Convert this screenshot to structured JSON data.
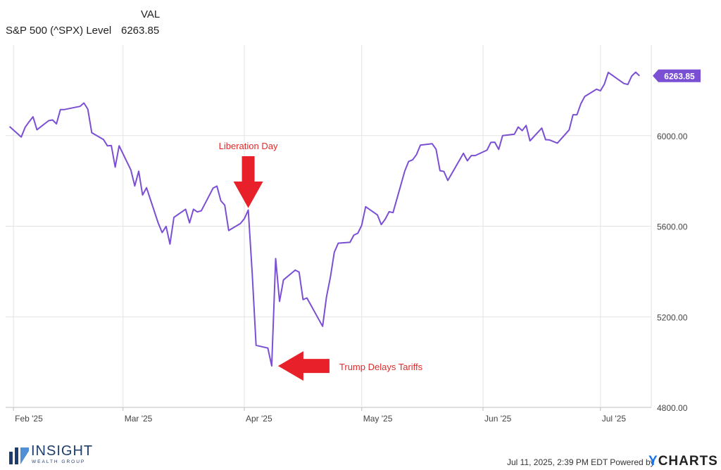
{
  "legend": {
    "column_header": "VAL",
    "series_label": "S&P 500 (^SPX) Level",
    "series_value": "6263.85"
  },
  "chart_data": {
    "type": "line",
    "color": "#7b4fd3",
    "ylim": [
      4800,
      6400
    ],
    "y_ticks": [
      "4800.00",
      "5200.00",
      "5600.00",
      "6000.00"
    ],
    "x_ticks": [
      "Feb '25",
      "Mar '25",
      "Apr '25",
      "May '25",
      "Jun '25",
      "Jul '25"
    ],
    "last_value_label": "6263.85",
    "grid": true,
    "series": [
      {
        "values": [
          [
            "2025-01-31",
            6040
          ],
          [
            "2025-02-03",
            5994
          ],
          [
            "2025-02-04",
            6037
          ],
          [
            "2025-02-05",
            6061
          ],
          [
            "2025-02-06",
            6083
          ],
          [
            "2025-02-07",
            6026
          ],
          [
            "2025-02-10",
            6066
          ],
          [
            "2025-02-11",
            6069
          ],
          [
            "2025-02-12",
            6052
          ],
          [
            "2025-02-13",
            6115
          ],
          [
            "2025-02-14",
            6115
          ],
          [
            "2025-02-18",
            6129
          ],
          [
            "2025-02-19",
            6144
          ],
          [
            "2025-02-20",
            6117
          ],
          [
            "2025-02-21",
            6013
          ],
          [
            "2025-02-24",
            5983
          ],
          [
            "2025-02-25",
            5955
          ],
          [
            "2025-02-26",
            5956
          ],
          [
            "2025-02-27",
            5861
          ],
          [
            "2025-02-28",
            5955
          ],
          [
            "2025-03-03",
            5849
          ],
          [
            "2025-03-04",
            5778
          ],
          [
            "2025-03-05",
            5843
          ],
          [
            "2025-03-06",
            5738
          ],
          [
            "2025-03-07",
            5770
          ],
          [
            "2025-03-10",
            5614
          ],
          [
            "2025-03-11",
            5572
          ],
          [
            "2025-03-12",
            5599
          ],
          [
            "2025-03-13",
            5521
          ],
          [
            "2025-03-14",
            5639
          ],
          [
            "2025-03-17",
            5675
          ],
          [
            "2025-03-18",
            5615
          ],
          [
            "2025-03-19",
            5675
          ],
          [
            "2025-03-20",
            5663
          ],
          [
            "2025-03-21",
            5668
          ],
          [
            "2025-03-24",
            5768
          ],
          [
            "2025-03-25",
            5777
          ],
          [
            "2025-03-26",
            5712
          ],
          [
            "2025-03-27",
            5693
          ],
          [
            "2025-03-28",
            5581
          ],
          [
            "2025-03-31",
            5612
          ],
          [
            "2025-04-01",
            5633
          ],
          [
            "2025-04-02",
            5671
          ],
          [
            "2025-04-03",
            5397
          ],
          [
            "2025-04-04",
            5074
          ],
          [
            "2025-04-07",
            5062
          ],
          [
            "2025-04-08",
            4983
          ],
          [
            "2025-04-09",
            5457
          ],
          [
            "2025-04-10",
            5268
          ],
          [
            "2025-04-11",
            5363
          ],
          [
            "2025-04-14",
            5406
          ],
          [
            "2025-04-15",
            5397
          ],
          [
            "2025-04-16",
            5276
          ],
          [
            "2025-04-17",
            5283
          ],
          [
            "2025-04-21",
            5158
          ],
          [
            "2025-04-22",
            5288
          ],
          [
            "2025-04-23",
            5376
          ],
          [
            "2025-04-24",
            5485
          ],
          [
            "2025-04-25",
            5525
          ],
          [
            "2025-04-28",
            5529
          ],
          [
            "2025-04-29",
            5561
          ],
          [
            "2025-04-30",
            5569
          ],
          [
            "2025-05-01",
            5604
          ],
          [
            "2025-05-02",
            5686
          ],
          [
            "2025-05-05",
            5650
          ],
          [
            "2025-05-06",
            5607
          ],
          [
            "2025-05-07",
            5631
          ],
          [
            "2025-05-08",
            5664
          ],
          [
            "2025-05-09",
            5660
          ],
          [
            "2025-05-12",
            5844
          ],
          [
            "2025-05-13",
            5886
          ],
          [
            "2025-05-14",
            5893
          ],
          [
            "2025-05-15",
            5916
          ],
          [
            "2025-05-16",
            5958
          ],
          [
            "2025-05-19",
            5964
          ],
          [
            "2025-05-20",
            5940
          ],
          [
            "2025-05-21",
            5845
          ],
          [
            "2025-05-22",
            5842
          ],
          [
            "2025-05-23",
            5802
          ],
          [
            "2025-05-27",
            5922
          ],
          [
            "2025-05-28",
            5889
          ],
          [
            "2025-05-29",
            5912
          ],
          [
            "2025-05-30",
            5912
          ],
          [
            "2025-06-02",
            5936
          ],
          [
            "2025-06-03",
            5970
          ],
          [
            "2025-06-04",
            5971
          ],
          [
            "2025-06-05",
            5939
          ],
          [
            "2025-06-06",
            6000
          ],
          [
            "2025-06-09",
            6006
          ],
          [
            "2025-06-10",
            6038
          ],
          [
            "2025-06-11",
            6022
          ],
          [
            "2025-06-12",
            6045
          ],
          [
            "2025-06-13",
            5977
          ],
          [
            "2025-06-16",
            6033
          ],
          [
            "2025-06-17",
            5982
          ],
          [
            "2025-06-18",
            5981
          ],
          [
            "2025-06-20",
            5967
          ],
          [
            "2025-06-23",
            6025
          ],
          [
            "2025-06-24",
            6092
          ],
          [
            "2025-06-25",
            6092
          ],
          [
            "2025-06-26",
            6141
          ],
          [
            "2025-06-27",
            6173
          ],
          [
            "2025-06-30",
            6205
          ],
          [
            "2025-07-01",
            6198
          ],
          [
            "2025-07-02",
            6227
          ],
          [
            "2025-07-03",
            6279
          ],
          [
            "2025-07-07",
            6230
          ],
          [
            "2025-07-08",
            6226
          ],
          [
            "2025-07-09",
            6263
          ],
          [
            "2025-07-10",
            6280
          ],
          [
            "2025-07-11",
            6264
          ]
        ]
      }
    ],
    "annotations": [
      {
        "text": "Liberation Day",
        "date": "2025-04-02",
        "value": 5671,
        "color": "#e02a2a"
      },
      {
        "text": "Trump Delays Tariffs",
        "date": "2025-04-08",
        "value": 4983,
        "color": "#e02a2a"
      }
    ]
  },
  "footer": {
    "timestamp": "Jul 11, 2025, 2:39 PM EDT Powered by",
    "brand_y": "Y",
    "brand_rest": "CHARTS",
    "logo_name": "INSIGHT",
    "logo_sub": "WEALTH GROUP"
  }
}
